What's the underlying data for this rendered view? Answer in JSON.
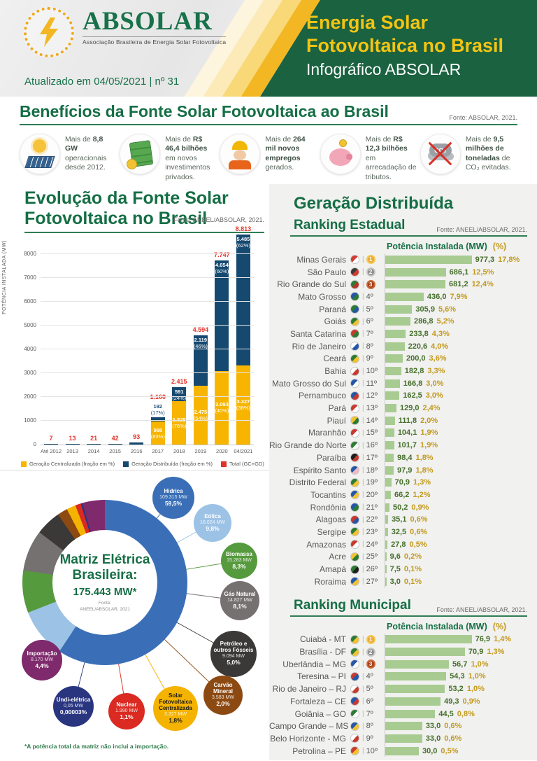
{
  "header": {
    "logo_name": "ABSOLAR",
    "logo_subtitle": "Associação Brasileira de Energia Solar Fotovoltaica",
    "updated": "Atualizado em 04/05/2021 | nº 31",
    "title_line1": "Energia Solar",
    "title_line2": "Fotovoltaica no Brasil",
    "subtitle": "Infográfico ABSOLAR",
    "colors": {
      "green": "#1A6240",
      "yellow": "#F4C413"
    }
  },
  "benefits": {
    "title": "Benefícios da Fonte Solar Fotovoltaica ao Brasil",
    "source": "Fonte: ABSOLAR, 2021.",
    "items": [
      {
        "icon": "solar-panel-icon",
        "segments": [
          {
            "t": "Mais de ",
            "b": false
          },
          {
            "t": "8,8 GW",
            "b": true
          },
          {
            "t": " operacionais desde 2012.",
            "b": false
          }
        ]
      },
      {
        "icon": "money-icon",
        "segments": [
          {
            "t": "Mais de ",
            "b": false
          },
          {
            "t": "R$ 46,4 bilhões",
            "b": true
          },
          {
            "t": " em novos investimentos privados.",
            "b": false
          }
        ]
      },
      {
        "icon": "worker-icon",
        "segments": [
          {
            "t": "Mais de ",
            "b": false
          },
          {
            "t": "264 mil novos empregos",
            "b": true
          },
          {
            "t": " gerados.",
            "b": false
          }
        ]
      },
      {
        "icon": "piggy-bank-icon",
        "segments": [
          {
            "t": "Mais de ",
            "b": false
          },
          {
            "t": "R$ 12,3 bilhões",
            "b": true
          },
          {
            "t": " em arrecadação de tributos.",
            "b": false
          }
        ]
      },
      {
        "icon": "co2-icon",
        "segments": [
          {
            "t": "Mais de ",
            "b": false
          },
          {
            "t": "9,5 milhões de toneladas",
            "b": true
          },
          {
            "t": " de CO₂ evitadas.",
            "b": false
          }
        ]
      }
    ]
  },
  "right_panel": {
    "heading": "Geração Distribuída"
  },
  "chart_data": [
    {
      "id": "evolution",
      "type": "bar",
      "stacked": true,
      "title_line1": "Evolução da Fonte Solar",
      "title_line2": "Fotovoltaica no Brasil",
      "source": "Fonte: ANEEL/ABSOLAR, 2021.",
      "ylabel": "POTÊNCIA INSTALADA  (MW)",
      "ylim": [
        0,
        8800
      ],
      "yticks": [
        0,
        1000,
        2000,
        3000,
        4000,
        5000,
        6000,
        7000,
        8000
      ],
      "categories": [
        "Até 2012",
        "2013",
        "2014",
        "2015",
        "2016",
        "2017",
        "2018",
        "2019",
        "2020",
        "04/2021"
      ],
      "totals": [
        7,
        13,
        21,
        42,
        93,
        1160,
        2415,
        4594,
        7747,
        8813
      ],
      "total_labels": [
        "7",
        "13",
        "21",
        "42",
        "93",
        "1.160",
        "2.415",
        "4.594",
        "7.747",
        "8.813"
      ],
      "total_color": "#E23329",
      "series": [
        {
          "name": "Geração Centralizada (fração em %)",
          "color": "#F7B500",
          "values": [
            0,
            0,
            0,
            0,
            0,
            968,
            1825,
            2475,
            3093,
            3327
          ],
          "labels": [
            "",
            "",
            "",
            "",
            "",
            "968",
            "1.825",
            "2.475",
            "3.093",
            "3.327"
          ],
          "pcts": [
            "",
            "",
            "",
            "",
            "",
            "(83%)",
            "(76%)",
            "(54%)",
            "(40%)",
            "(38%)"
          ]
        },
        {
          "name": "Geração Distribuída (fração em %)",
          "color": "#16496F",
          "values": [
            7,
            13,
            21,
            42,
            93,
            192,
            591,
            2119,
            4654,
            5485
          ],
          "labels": [
            "",
            "",
            "",
            "",
            "",
            "192",
            "591",
            "2.119",
            "4.654",
            "5.485"
          ],
          "pcts": [
            "",
            "",
            "",
            "",
            "",
            "(17%)",
            "(24%)",
            "(46%)",
            "(60%)",
            "(62%)"
          ]
        }
      ],
      "legend": [
        {
          "label": "Geração Centralizada (fração em %)",
          "color": "#F7B500"
        },
        {
          "label": "Geração Distribuída (fração em %)",
          "color": "#16496F"
        },
        {
          "label": "Total (GC+GD)",
          "color": "#E23329"
        }
      ]
    },
    {
      "id": "matriz",
      "type": "pie",
      "center_title": "Matriz Elétrica Brasileira:",
      "center_total": "175.443 MW*",
      "center_source_line1": "Fonte:",
      "center_source_line2": "ANEEL/ABSOLAR, 2021",
      "footnote": "*A potência total da matriz não inclui a importação.",
      "slices": [
        {
          "label": "Hídrica",
          "mw": "109.315 MW",
          "pct": "59,5%",
          "value": 59.5,
          "color": "#3A6FB7",
          "dark": false
        },
        {
          "label": "Eólica",
          "mw": "18.024 MW",
          "pct": "9,8%",
          "value": 9.8,
          "color": "#9CC2E5",
          "dark": false
        },
        {
          "label": "Biomassa",
          "mw": "15.283 MW",
          "pct": "8,3%",
          "value": 8.3,
          "color": "#569A3E",
          "dark": false
        },
        {
          "label": "Gás Natural",
          "mw": "14.827 MW",
          "pct": "8,1%",
          "value": 8.1,
          "color": "#767171",
          "dark": false
        },
        {
          "label": "Petróleo e outros Fósseis",
          "mw": "9.094 MW",
          "pct": "5,0%",
          "value": 5.0,
          "color": "#3B3838",
          "dark": false
        },
        {
          "label": "Carvão Mineral",
          "mw": "3.583 MW",
          "pct": "2,0%",
          "value": 2.0,
          "color": "#8C4A12",
          "dark": false
        },
        {
          "label": "Solar Fotovoltaica Centralizada",
          "mw": "3.327 MW",
          "pct": "1,8%",
          "value": 1.8,
          "color": "#F5B301",
          "dark": true
        },
        {
          "label": "Nuclear",
          "mw": "1.990 MW",
          "pct": "1,1%",
          "value": 1.1,
          "color": "#DA2A21",
          "dark": false
        },
        {
          "label": "Undi-elétrica",
          "mw": "0,05 MW",
          "pct": "0,00003%",
          "value": 3e-05,
          "color": "#2A3580",
          "dark": false
        },
        {
          "label": "Importação",
          "mw": "8.170 MW",
          "pct": "4,4%",
          "value": 4.4,
          "color": "#7E2A6C",
          "dark": false
        }
      ]
    },
    {
      "id": "ranking-estadual",
      "type": "bar",
      "title": "Ranking Estadual",
      "source": "Fonte: ANEEL/ABSOLAR, 2021.",
      "header_mw": "Potência Instalada (MW)",
      "header_pct": "(%)",
      "bar_color": "#A8CB92",
      "rows": [
        {
          "name": "Minas Gerais",
          "rank": "1º",
          "medal": "gold",
          "mw": "977,3",
          "value": 977.3,
          "pct": "17,8%",
          "flag": [
            "#d23b2f",
            "#ffffff"
          ]
        },
        {
          "name": "São Paulo",
          "rank": "2º",
          "medal": "silver",
          "mw": "686,1",
          "value": 686.1,
          "pct": "12,5%",
          "flag": [
            "#3a3a3a",
            "#d23b2f"
          ]
        },
        {
          "name": "Rio Grande do Sul",
          "rank": "3º",
          "medal": "bronze",
          "mw": "681,2",
          "value": 681.2,
          "pct": "12,4%",
          "flag": [
            "#2d7a33",
            "#b5342a"
          ]
        },
        {
          "name": "Mato Grosso",
          "rank": "4º",
          "medal": null,
          "mw": "436,0",
          "value": 436.0,
          "pct": "7,9%",
          "flag": [
            "#2457a8",
            "#2d7a33"
          ]
        },
        {
          "name": "Paraná",
          "rank": "5º",
          "medal": null,
          "mw": "305,9",
          "value": 305.9,
          "pct": "5,6%",
          "flag": [
            "#2d7a33",
            "#2457a8"
          ]
        },
        {
          "name": "Goiás",
          "rank": "6º",
          "medal": null,
          "mw": "286,8",
          "value": 286.8,
          "pct": "5,2%",
          "flag": [
            "#2d7a33",
            "#f2c233"
          ]
        },
        {
          "name": "Santa Catarina",
          "rank": "7º",
          "medal": null,
          "mw": "233,8",
          "value": 233.8,
          "pct": "4,3%",
          "flag": [
            "#c8392e",
            "#2d7a33"
          ]
        },
        {
          "name": "Rio de Janeiro",
          "rank": "8º",
          "medal": null,
          "mw": "220,6",
          "value": 220.6,
          "pct": "4,0%",
          "flag": [
            "#ffffff",
            "#2457a8"
          ]
        },
        {
          "name": "Ceará",
          "rank": "9º",
          "medal": null,
          "mw": "200,0",
          "value": 200.0,
          "pct": "3,6%",
          "flag": [
            "#2d7a33",
            "#f2c233"
          ]
        },
        {
          "name": "Bahia",
          "rank": "10º",
          "medal": null,
          "mw": "182,8",
          "value": 182.8,
          "pct": "3,3%",
          "flag": [
            "#ffffff",
            "#c8392e"
          ]
        },
        {
          "name": "Mato Grosso do Sul",
          "rank": "11º",
          "medal": null,
          "mw": "166,8",
          "value": 166.8,
          "pct": "3,0%",
          "flag": [
            "#2457a8",
            "#ffffff"
          ]
        },
        {
          "name": "Pernambuco",
          "rank": "12º",
          "medal": null,
          "mw": "162,5",
          "value": 162.5,
          "pct": "3,0%",
          "flag": [
            "#2457a8",
            "#c8392e"
          ]
        },
        {
          "name": "Pará",
          "rank": "13º",
          "medal": null,
          "mw": "129,0",
          "value": 129.0,
          "pct": "2,4%",
          "flag": [
            "#c8392e",
            "#ffffff"
          ]
        },
        {
          "name": "Piauí",
          "rank": "14º",
          "medal": null,
          "mw": "111,8",
          "value": 111.8,
          "pct": "2,0%",
          "flag": [
            "#f2c233",
            "#2d7a33"
          ]
        },
        {
          "name": "Maranhão",
          "rank": "15º",
          "medal": null,
          "mw": "104,1",
          "value": 104.1,
          "pct": "1,9%",
          "flag": [
            "#c8392e",
            "#ffffff"
          ]
        },
        {
          "name": "Rio Grande do Norte",
          "rank": "16º",
          "medal": null,
          "mw": "101,7",
          "value": 101.7,
          "pct": "1,9%",
          "flag": [
            "#2d7a33",
            "#f7f7f7"
          ]
        },
        {
          "name": "Paraíba",
          "rank": "17º",
          "medal": null,
          "mw": "98,4",
          "value": 98.4,
          "pct": "1,8%",
          "flag": [
            "#1d1d1d",
            "#c8392e"
          ]
        },
        {
          "name": "Espírito Santo",
          "rank": "18º",
          "medal": null,
          "mw": "97,9",
          "value": 97.9,
          "pct": "1,8%",
          "flag": [
            "#2457a8",
            "#f2b9c4"
          ]
        },
        {
          "name": "Distrito Federal",
          "rank": "19º",
          "medal": null,
          "mw": "70,9",
          "value": 70.9,
          "pct": "1,3%",
          "flag": [
            "#2d7a33",
            "#f2c233"
          ]
        },
        {
          "name": "Tocantins",
          "rank": "20º",
          "medal": null,
          "mw": "66,2",
          "value": 66.2,
          "pct": "1,2%",
          "flag": [
            "#2457a8",
            "#f2c233"
          ]
        },
        {
          "name": "Rondônia",
          "rank": "21º",
          "medal": null,
          "mw": "50,2",
          "value": 50.2,
          "pct": "0,9%",
          "flag": [
            "#2457a8",
            "#2d7a33"
          ]
        },
        {
          "name": "Alagoas",
          "rank": "22º",
          "medal": null,
          "mw": "35,1",
          "value": 35.1,
          "pct": "0,6%",
          "flag": [
            "#c8392e",
            "#2457a8"
          ]
        },
        {
          "name": "Sergipe",
          "rank": "23º",
          "medal": null,
          "mw": "32,5",
          "value": 32.5,
          "pct": "0,6%",
          "flag": [
            "#2d7a33",
            "#f2c233"
          ]
        },
        {
          "name": "Amazonas",
          "rank": "24º",
          "medal": null,
          "mw": "27,8",
          "value": 27.8,
          "pct": "0,5%",
          "flag": [
            "#c8392e",
            "#ffffff"
          ]
        },
        {
          "name": "Acre",
          "rank": "25º",
          "medal": null,
          "mw": "9,6",
          "value": 9.6,
          "pct": "0,2%",
          "flag": [
            "#f2c233",
            "#2d7a33"
          ]
        },
        {
          "name": "Amapá",
          "rank": "26º",
          "medal": null,
          "mw": "7,5",
          "value": 7.5,
          "pct": "0,1%",
          "flag": [
            "#2d7a33",
            "#1d1d1d"
          ]
        },
        {
          "name": "Roraima",
          "rank": "27º",
          "medal": null,
          "mw": "3,0",
          "value": 3.0,
          "pct": "0,1%",
          "flag": [
            "#2457a8",
            "#f2c233"
          ]
        }
      ]
    },
    {
      "id": "ranking-municipal",
      "type": "bar",
      "title": "Ranking Municipal",
      "source": "Fonte: ANEEL/ABSOLAR, 2021.",
      "header_mw": "Potência Instalada (MW)",
      "header_pct": "(%)",
      "bar_color": "#A8CB92",
      "rows": [
        {
          "name": "Cuiabá - MT",
          "rank": "1º",
          "medal": "gold",
          "mw": "76,9",
          "value": 76.9,
          "pct": "1,4%",
          "flag": [
            "#2d7a33",
            "#f2c233"
          ]
        },
        {
          "name": "Brasília - DF",
          "rank": "2º",
          "medal": "silver",
          "mw": "70,9",
          "value": 70.9,
          "pct": "1,3%",
          "flag": [
            "#2d7a33",
            "#f2c233"
          ]
        },
        {
          "name": "Uberlândia – MG",
          "rank": "3º",
          "medal": "bronze",
          "mw": "56,7",
          "value": 56.7,
          "pct": "1,0%",
          "flag": [
            "#2457a8",
            "#ffffff"
          ]
        },
        {
          "name": "Teresina – PI",
          "rank": "4º",
          "medal": null,
          "mw": "54,3",
          "value": 54.3,
          "pct": "1,0%",
          "flag": [
            "#c8392e",
            "#2457a8"
          ]
        },
        {
          "name": "Rio de Janeiro – RJ",
          "rank": "5º",
          "medal": null,
          "mw": "53,2",
          "value": 53.2,
          "pct": "1,0%",
          "flag": [
            "#ffffff",
            "#c8392e"
          ]
        },
        {
          "name": "Fortaleza – CE",
          "rank": "6º",
          "medal": null,
          "mw": "49,3",
          "value": 49.3,
          "pct": "0,9%",
          "flag": [
            "#2457a8",
            "#c8392e"
          ]
        },
        {
          "name": "Goiânia – GO",
          "rank": "7º",
          "medal": null,
          "mw": "44,5",
          "value": 44.5,
          "pct": "0,8%",
          "flag": [
            "#2d7a33",
            "#ffffff"
          ]
        },
        {
          "name": "Campo Grande – MS",
          "rank": "8º",
          "medal": null,
          "mw": "33,0",
          "value": 33.0,
          "pct": "0,6%",
          "flag": [
            "#2457a8",
            "#f2c233"
          ]
        },
        {
          "name": "Belo Horizonte - MG",
          "rank": "9º",
          "medal": null,
          "mw": "33,0",
          "value": 33.0,
          "pct": "0,6%",
          "flag": [
            "#ffffff",
            "#c8392e"
          ]
        },
        {
          "name": "Petrolina – PE",
          "rank": "10º",
          "medal": null,
          "mw": "30,0",
          "value": 30.0,
          "pct": "0,5%",
          "flag": [
            "#c8392e",
            "#f2c233"
          ]
        }
      ]
    }
  ]
}
